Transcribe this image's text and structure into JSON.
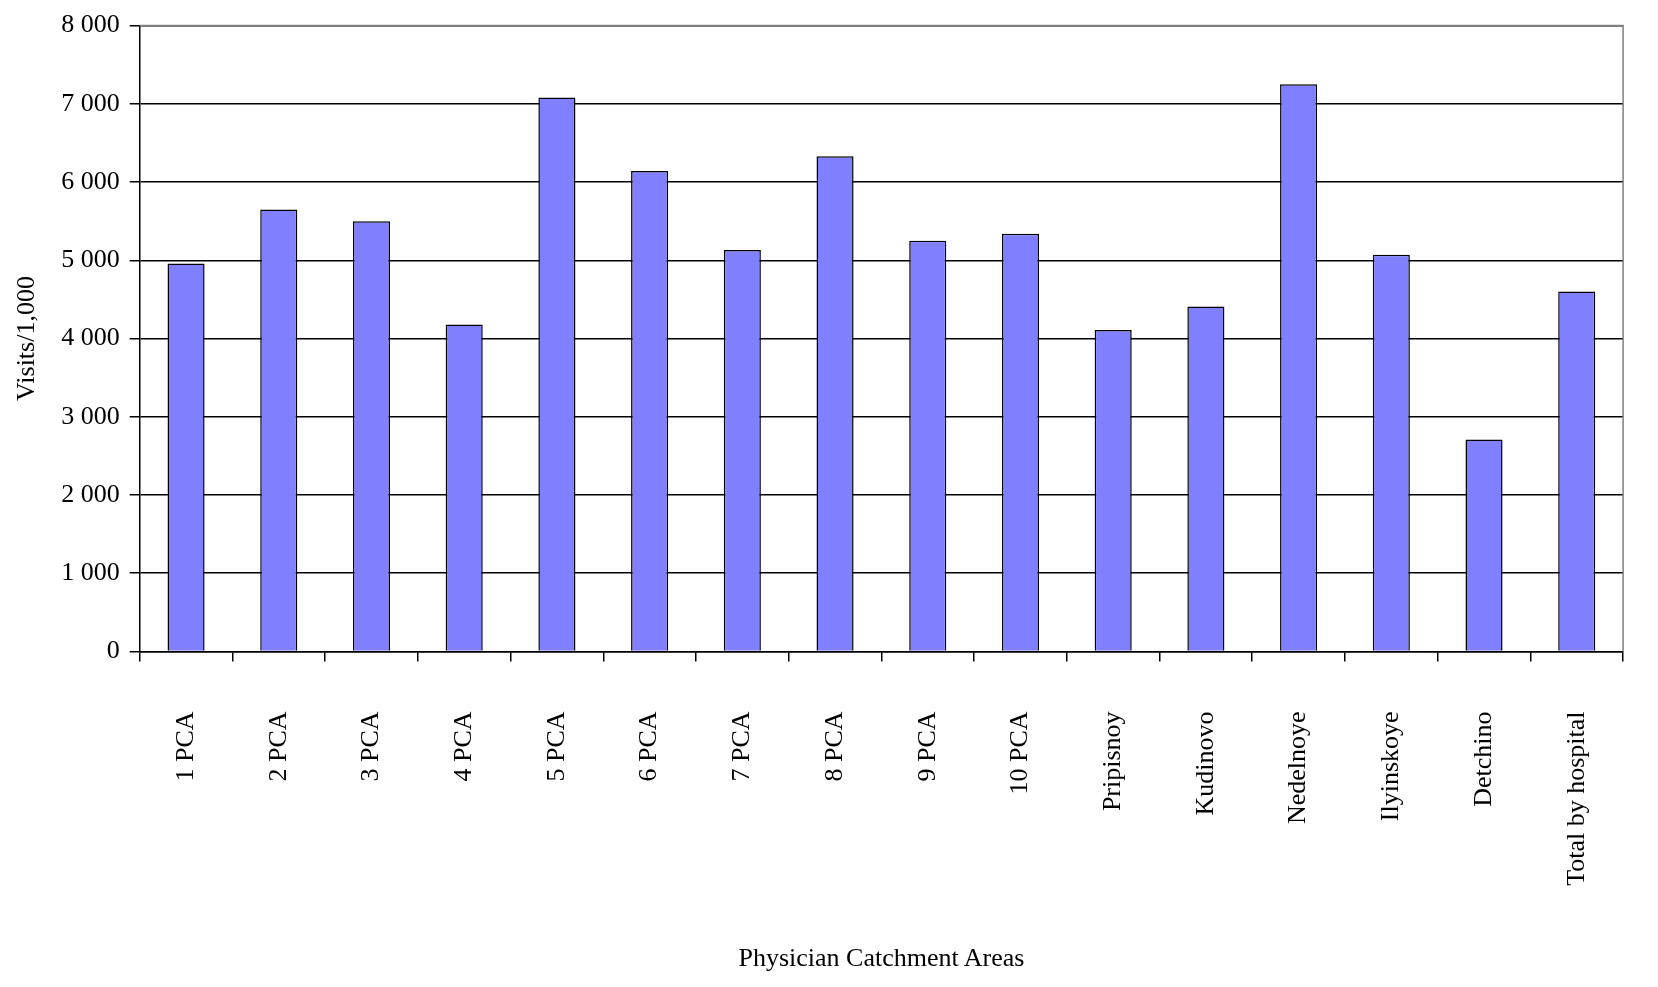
{
  "chart_data": {
    "type": "bar",
    "xlabel": "Physician Catchment Areas",
    "ylabel": "Visits/1,000",
    "categories": [
      "1 PCA",
      "2 PCA",
      "3 PCA",
      "4 PCA",
      "5 PCA",
      "6 PCA",
      "7 PCA",
      "8 PCA",
      "9 PCA",
      "10 PCA",
      "Pripisnoy",
      "Kudinovo",
      "Nedelnoye",
      "Ilyinskoye",
      "Detchino",
      "Total by hospital"
    ],
    "values": [
      4960,
      5650,
      5500,
      4180,
      7080,
      6140,
      5130,
      6330,
      5250,
      5340,
      4110,
      4410,
      7250,
      5070,
      2710,
      4600
    ],
    "color": "#8080ff",
    "ylim": [
      0,
      8000
    ],
    "yticks": [
      0,
      {
        "value": 1000,
        "label": "1 000"
      },
      {
        "value": 2000,
        "label": "2 000"
      },
      {
        "value": 3000,
        "label": "3 000"
      },
      {
        "value": 4000,
        "label": "4 000"
      },
      {
        "value": 5000,
        "label": "5 000"
      },
      {
        "value": 6000,
        "label": "6 000"
      },
      {
        "value": 7000,
        "label": "7 000"
      },
      {
        "value": 8000,
        "label": "8 000"
      }
    ],
    "grid": "y",
    "legend": false
  }
}
